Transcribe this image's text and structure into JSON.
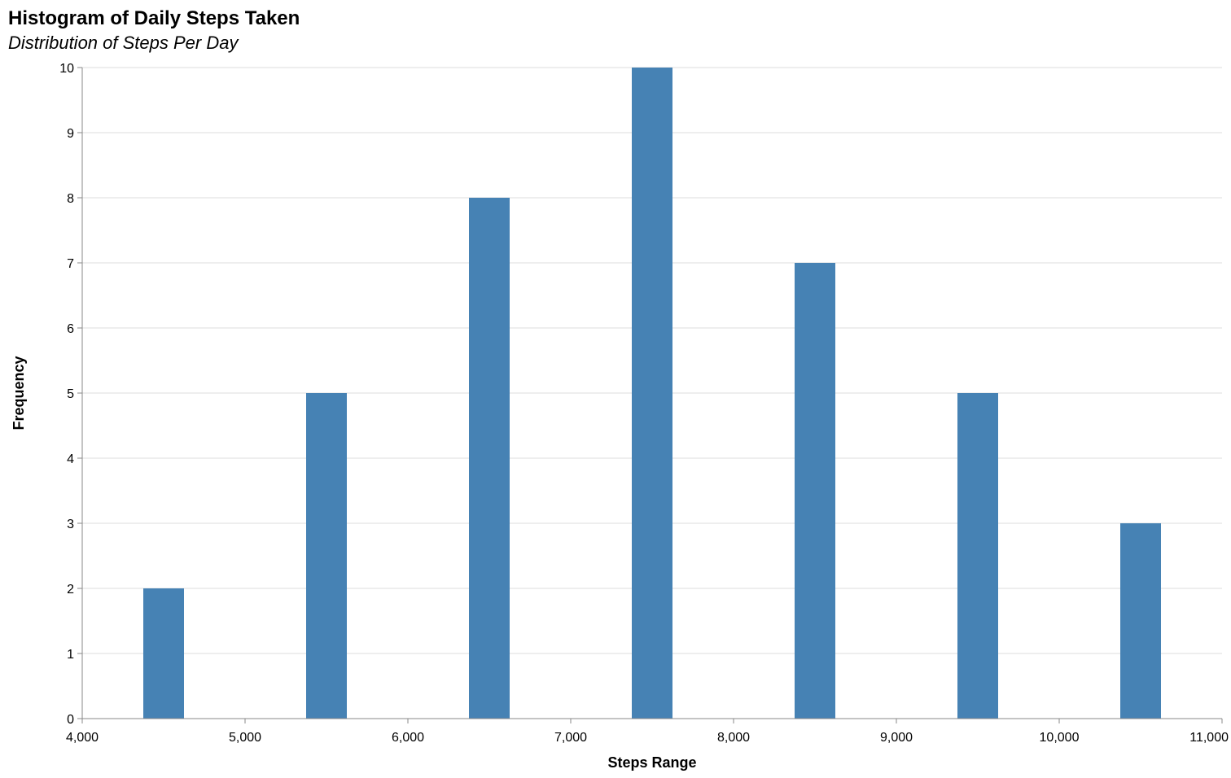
{
  "chart_data": {
    "type": "bar",
    "title": "Histogram of Daily Steps Taken",
    "subtitle": "Distribution of Steps Per Day",
    "xlabel": "Steps Range",
    "ylabel": "Frequency",
    "xlim": [
      4000,
      11000
    ],
    "ylim": [
      0,
      10
    ],
    "x_ticks": [
      4000,
      5000,
      6000,
      7000,
      8000,
      9000,
      10000,
      11000
    ],
    "x_tick_labels": [
      "4,000",
      "5,000",
      "6,000",
      "7,000",
      "8,000",
      "9,000",
      "10,000",
      "11,000"
    ],
    "y_ticks": [
      0,
      1,
      2,
      3,
      4,
      5,
      6,
      7,
      8,
      9,
      10
    ],
    "y_tick_labels": [
      "0",
      "1",
      "2",
      "3",
      "4",
      "5",
      "6",
      "7",
      "8",
      "9",
      "10"
    ],
    "bins": [
      {
        "start": 4375,
        "end": 4625,
        "count": 2
      },
      {
        "start": 5375,
        "end": 5625,
        "count": 5
      },
      {
        "start": 6375,
        "end": 6625,
        "count": 8
      },
      {
        "start": 7375,
        "end": 7625,
        "count": 10
      },
      {
        "start": 8375,
        "end": 8625,
        "count": 7
      },
      {
        "start": 9375,
        "end": 9625,
        "count": 5
      },
      {
        "start": 10375,
        "end": 10625,
        "count": 3
      }
    ],
    "bar_color": "#4682b4",
    "grid": true,
    "legend": "none"
  }
}
